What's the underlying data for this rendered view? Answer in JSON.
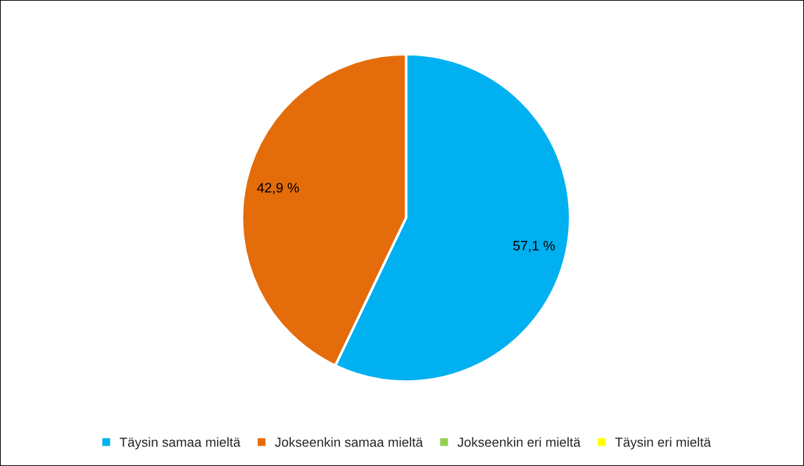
{
  "chart_data": {
    "type": "pie",
    "categories": [
      "Täysin samaa mieltä",
      "Jokseenkin samaa mieltä",
      "Jokseenkin eri mieltä",
      "Täysin eri mieltä"
    ],
    "values": [
      57.1,
      42.9,
      0,
      0
    ],
    "colors": [
      "#00b0f0",
      "#e46c0a",
      "#92d050",
      "#ffff00"
    ],
    "value_labels": [
      "57,1 %",
      "42,9 %",
      null,
      null
    ],
    "legend": "bottom"
  }
}
